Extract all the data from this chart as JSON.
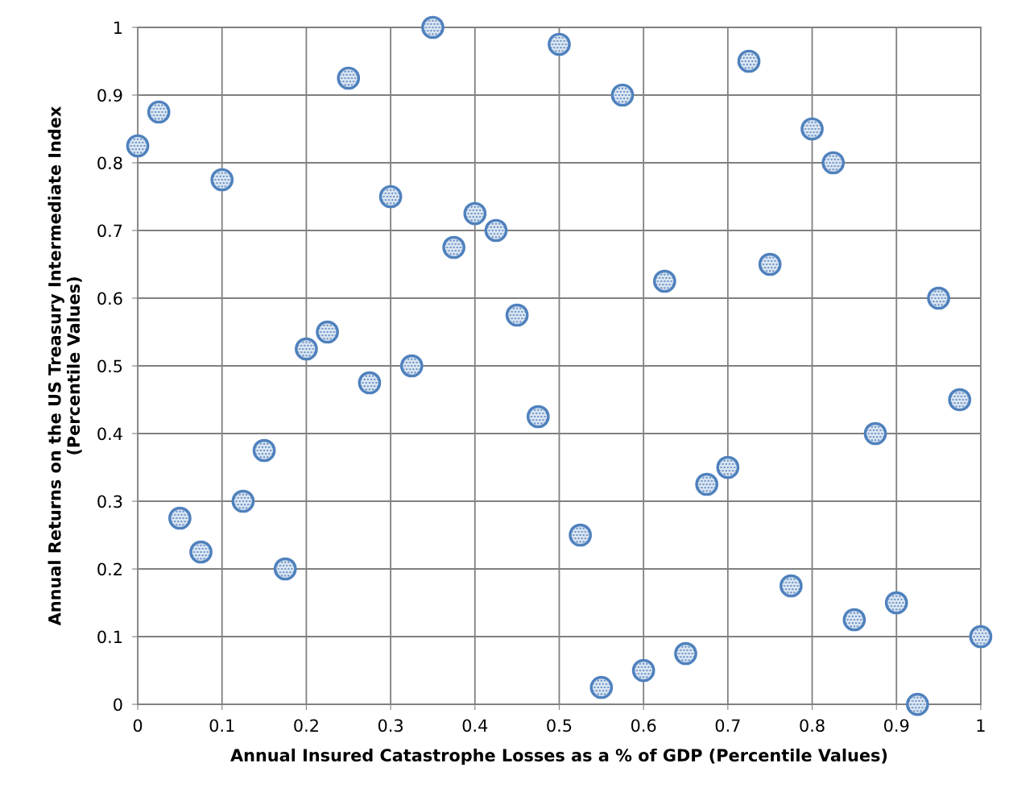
{
  "chart_data": {
    "type": "scatter",
    "xlabel": "Annual Insured Catastrophe Losses as a % of GDP (Percentile Values)",
    "ylabel": "Annual Returns on the US Treasury Intermediate Index\n(Percentile Values)",
    "x": [
      0,
      0.025,
      0.05,
      0.075,
      0.1,
      0.125,
      0.15,
      0.175,
      0.2,
      0.225,
      0.25,
      0.275,
      0.3,
      0.325,
      0.35,
      0.375,
      0.4,
      0.425,
      0.45,
      0.475,
      0.5,
      0.525,
      0.55,
      0.575,
      0.6,
      0.625,
      0.65,
      0.675,
      0.7,
      0.725,
      0.75,
      0.775,
      0.8,
      0.825,
      0.85,
      0.875,
      0.9,
      0.925,
      0.95,
      0.975,
      1.0
    ],
    "values": [
      0.825,
      0.875,
      0.275,
      0.225,
      0.775,
      0.3,
      0.375,
      0.2,
      0.525,
      0.55,
      0.925,
      0.475,
      0.75,
      0.5,
      1.0,
      0.675,
      0.725,
      0.7,
      0.575,
      0.425,
      0.975,
      0.25,
      0.025,
      0.9,
      0.05,
      0.625,
      0.075,
      0.325,
      0.35,
      0.95,
      0.65,
      0.175,
      0.85,
      0.8,
      0.125,
      0.4,
      0.15,
      0.0,
      0.6,
      0.45,
      0.1
    ],
    "color": "#4f81bd",
    "marker": "circle",
    "xlim": [
      0,
      1
    ],
    "xticks": [
      0,
      {
        "value": 0.1,
        "label": "0.1"
      },
      {
        "value": 0.2,
        "label": "0.2"
      },
      {
        "value": 0.3,
        "label": "0.3"
      },
      {
        "value": 0.4,
        "label": "0.4"
      },
      {
        "value": 0.5,
        "label": "0.5"
      },
      {
        "value": 0.6,
        "label": "0.6"
      },
      {
        "value": 0.7,
        "label": "0.7"
      },
      {
        "value": 0.8,
        "label": "0.8"
      },
      {
        "value": 0.9,
        "label": "0.9"
      },
      1
    ],
    "ylim": [
      0,
      1
    ],
    "yticks": [
      0,
      {
        "value": 0.1,
        "label": "0.1"
      },
      {
        "value": 0.2,
        "label": "0.2"
      },
      {
        "value": 0.3,
        "label": "0.3"
      },
      {
        "value": 0.4,
        "label": "0.4"
      },
      {
        "value": 0.5,
        "label": "0.5"
      },
      {
        "value": 0.6,
        "label": "0.6"
      },
      {
        "value": 0.7,
        "label": "0.7"
      },
      {
        "value": 0.8,
        "label": "0.8"
      },
      {
        "value": 0.9,
        "label": "0.9"
      },
      1
    ],
    "grid": true
  }
}
